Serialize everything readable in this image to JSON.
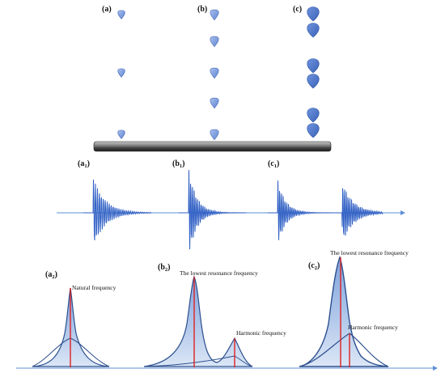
{
  "panels": {
    "a": {
      "label": "(a)"
    },
    "b": {
      "label": "(b)"
    },
    "c": {
      "label": "(c)"
    }
  },
  "signals": {
    "a1": {
      "label_main": "(a",
      "label_sub": "1",
      "label_close": ")"
    },
    "b1": {
      "label_main": "(b",
      "label_sub": "1",
      "label_close": ")"
    },
    "c1": {
      "label_main": "(c",
      "label_sub": "1",
      "label_close": ")"
    }
  },
  "spectra": {
    "a2": {
      "label_main": "(a",
      "label_sub": "2",
      "label_close": ")",
      "annotation": "Natural frequency"
    },
    "b2": {
      "label_main": "(b",
      "label_sub": "2",
      "label_close": ")",
      "annotation_main": "The lowest resonance frequency",
      "annotation_harmonic": "Harmonic frequency"
    },
    "c2": {
      "label_main": "(c",
      "label_sub": "2",
      "label_close": ")",
      "annotation_main": "The lowest resonance frequency",
      "annotation_harmonic": "Harmonic frequency"
    }
  },
  "colors": {
    "drop_small": "#7f9fe0",
    "drop_large": "#4a72c8",
    "wave": "#2f5fc4",
    "axis": "#5b8fd6",
    "peak_line": "#e02020",
    "fill": "#9dbbe6",
    "curve": "#2c4f8e"
  }
}
